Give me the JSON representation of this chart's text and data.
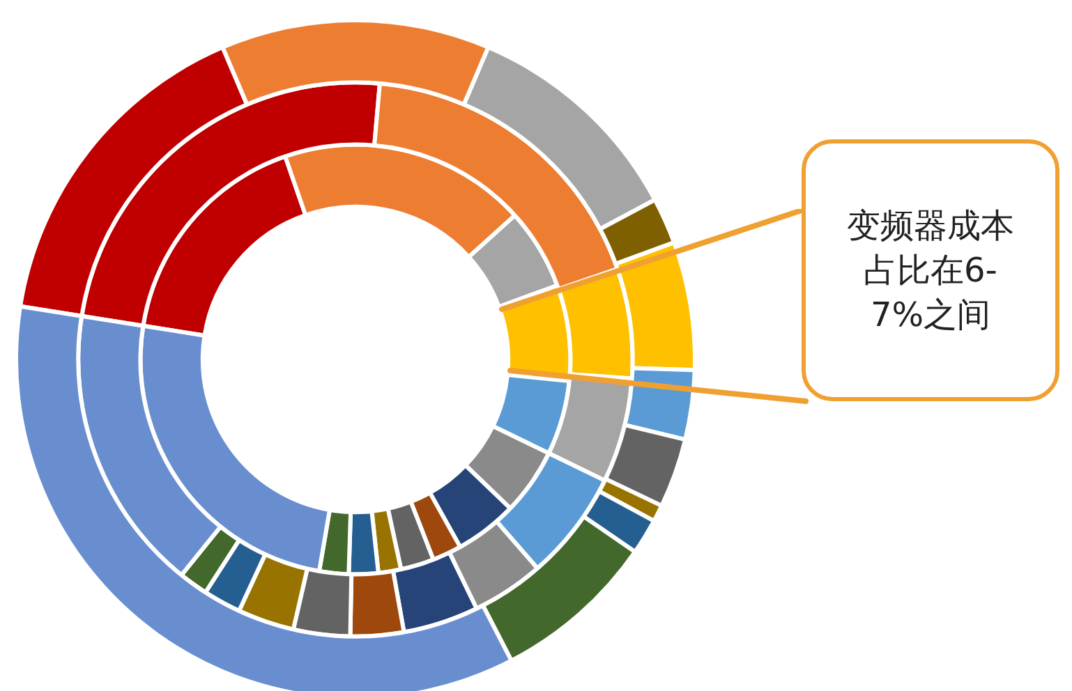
{
  "chart_data": {
    "type": "donut",
    "legend": false,
    "series": [
      {
        "values": [
          16.1,
          12.8,
          10.8,
          2.2,
          6.1,
          3.3,
          3.3,
          0.8,
          1.7,
          7.8,
          35.1
        ],
        "colors": [
          "#c00000",
          "#ed7d31",
          "#a5a5a5",
          "#7f6000",
          "#ffc000",
          "#5b9bd5",
          "#636363",
          "#997300",
          "#255e91",
          "#43682b",
          "#698ed0"
        ]
      },
      {
        "values": [
          23.9,
          18.3,
          6.4,
          6.1,
          6.4,
          4.2,
          4.4,
          3.1,
          3.3,
          3.3,
          2.2,
          1.7,
          16.7
        ],
        "colors": [
          "#c00000",
          "#ed7d31",
          "#ffc000",
          "#a5a5a5",
          "#5b9bd5",
          "#8a8a8a",
          "#264478",
          "#9e480e",
          "#636363",
          "#997300",
          "#255e91",
          "#43682b",
          "#698ed0"
        ]
      },
      {
        "values": [
          17.2,
          18.6,
          6.1,
          7.2,
          5.6,
          5.0,
          4.7,
          2.2,
          2.5,
          1.7,
          2.2,
          2.2,
          24.8
        ],
        "colors": [
          "#c00000",
          "#ed7d31",
          "#a5a5a5",
          "#ffc000",
          "#5b9bd5",
          "#8a8a8a",
          "#264478",
          "#9e480e",
          "#636363",
          "#997300",
          "#255e91",
          "#43682b",
          "#698ed0"
        ]
      }
    ],
    "annotations": [
      "变频器成本占比在6-7%之间"
    ]
  }
}
